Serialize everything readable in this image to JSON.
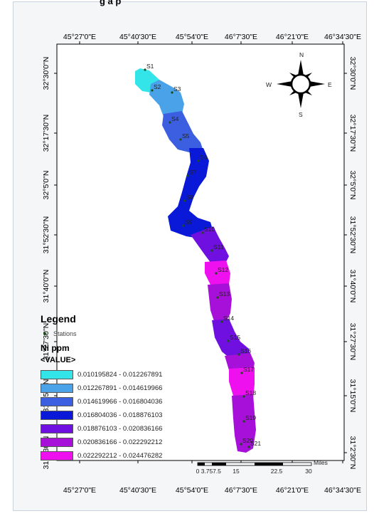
{
  "header": {
    "title": "g   a p"
  },
  "longitude_labels": [
    "45°27'0\"E",
    "45°40'30\"E",
    "45°54'0\"E",
    "46°7'30\"E",
    "46°21'0\"E",
    "46°34'30\"E"
  ],
  "latitude_labels": [
    "32°30'0\"N",
    "32°17'30\"N",
    "32°5'0\"N",
    "31°52'30\"N",
    "31°40'0\"N",
    "31°27'30\"N",
    "31°15'0\"N",
    "31°2'30\"N"
  ],
  "north_arrow": {
    "n": "N",
    "e": "E",
    "s": "S",
    "w": "W"
  },
  "legend": {
    "title": "Legend",
    "stations_label": "Stations",
    "variable_title": "Ni ppm",
    "value_title": "<VALUE>",
    "classes": [
      {
        "label": "0.010195824 - 0.012267891",
        "color": "#33e5e8"
      },
      {
        "label": "0.012267891 - 0.014619966",
        "color": "#4aa3e8"
      },
      {
        "label": "0.014619966 - 0.016804036",
        "color": "#3b5fe0"
      },
      {
        "label": "0.016804036 - 0.018876103",
        "color": "#0a19d8"
      },
      {
        "label": "0.018876103 - 0.020836166",
        "color": "#6f10e0"
      },
      {
        "label": "0.020836166 - 0.022292212",
        "color": "#a710d8"
      },
      {
        "label": "0.022292212 - 0.024476282",
        "color": "#ef10ef"
      }
    ]
  },
  "scale_bar": {
    "unit": "Miles",
    "ticks": [
      "0",
      "3.75",
      "7.5",
      "15",
      "22.5",
      "30"
    ]
  },
  "stations": [
    "S1",
    "S2",
    "S3",
    "S4",
    "S5",
    "S6",
    "S7",
    "S8",
    "S9",
    "S10",
    "S11",
    "S12",
    "S13",
    "S14",
    "S15",
    "S16",
    "S17",
    "S18",
    "S19",
    "S20",
    "S21"
  ]
}
